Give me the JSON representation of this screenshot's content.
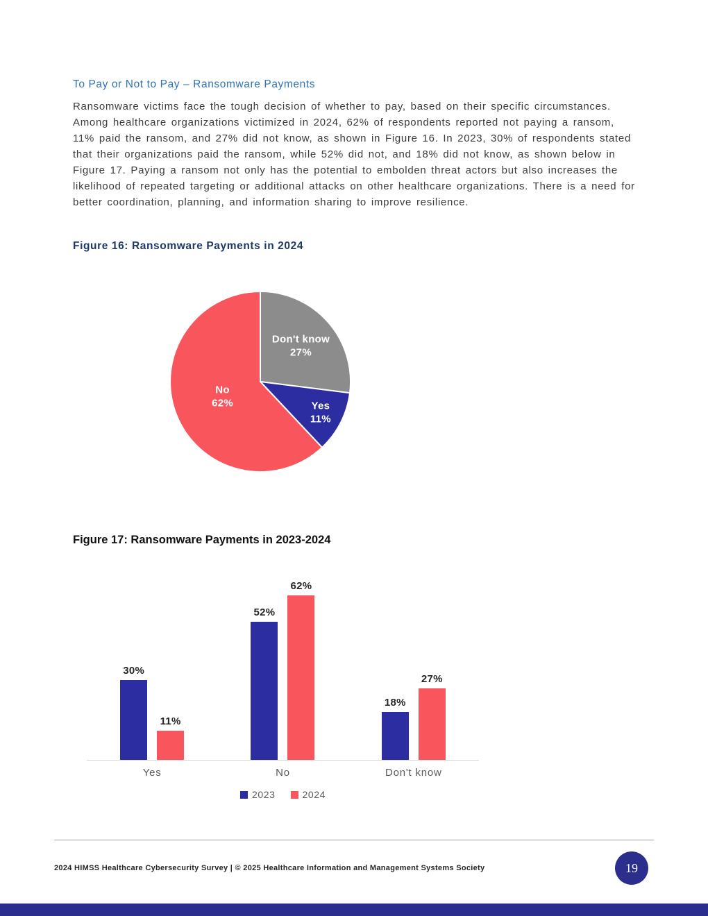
{
  "document": {
    "section_heading": "To Pay or Not to Pay – Ransomware Payments",
    "body_paragraph": "Ransomware victims face the tough decision of whether to pay, based on their specific circumstances.  Among healthcare organizations victimized in 2024, 62% of respondents reported not paying a ransom, 11% paid the ransom, and 27% did not know, as shown in Figure 16. In 2023, 30% of respondents stated that their organizations paid the ransom, while 52% did not, and 18% did not know, as shown below in Figure 17. Paying a ransom not only has the potential to embolden threat actors but also increases the likelihood of repeated targeting or additional attacks on other healthcare organizations. There is a need for better coordination, planning, and information sharing to improve resilience."
  },
  "footer": {
    "text": "2024 HIMSS Healthcare Cybersecurity Survey  |  © 2025 Healthcare Information and Management Systems Society",
    "page_number": "19"
  },
  "colors": {
    "heading_blue": "#2E74B5",
    "figure16_title_navy": "#1F3864",
    "body_text": "#3B3B3B",
    "series_2023_blue": "#2B2DA0",
    "series_2024_red": "#F8555D",
    "pie_gray": "#8C8C8C",
    "footer_navy": "#2B2E8C",
    "axis_gray": "#D6D6D6"
  },
  "chart_data": [
    {
      "type": "pie",
      "title": "Figure 16: Ransomware Payments in 2024",
      "start_angle_deg": 0,
      "direction": "clockwise",
      "slices": [
        {
          "label": "Don't know",
          "value": 27,
          "color": "#8C8C8C",
          "label_radius": 0.6
        },
        {
          "label": "Yes",
          "value": 11,
          "color": "#2B2DA0",
          "label_radius": 0.75
        },
        {
          "label": "No",
          "value": 62,
          "color": "#F8555D",
          "label_radius": 0.45
        }
      ],
      "value_suffix": "%",
      "label_style": "white-bold-inside"
    },
    {
      "type": "bar",
      "title": "Figure 17: Ransomware Payments in 2023-2024",
      "categories": [
        "Yes",
        "No",
        "Don't know"
      ],
      "series": [
        {
          "name": "2023",
          "color": "#2B2DA0",
          "values": [
            30,
            52,
            18
          ]
        },
        {
          "name": "2024",
          "color": "#F8555D",
          "values": [
            11,
            62,
            27
          ]
        }
      ],
      "value_suffix": "%",
      "ylim": [
        0,
        70
      ],
      "grid": false,
      "legend_position": "bottom"
    }
  ]
}
